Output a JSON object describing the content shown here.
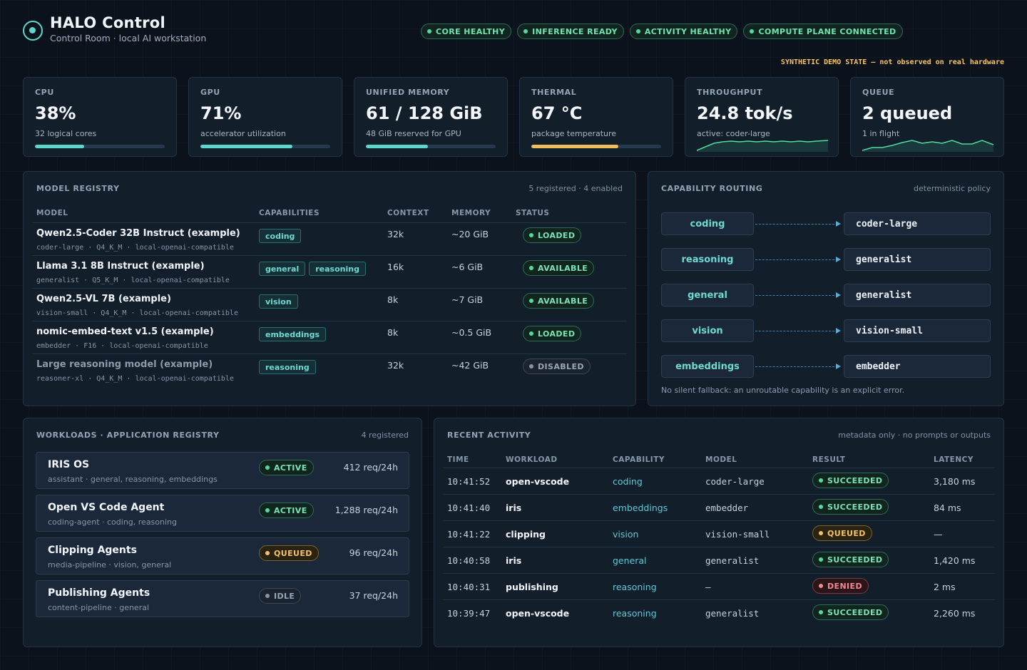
{
  "header": {
    "title": "HALO Control",
    "subtitle": "Control Room · local AI workstation",
    "badges": [
      "CORE HEALTHY",
      "INFERENCE READY",
      "ACTIVITY HEALTHY",
      "COMPUTE PLANE CONNECTED"
    ],
    "demo_note": "SYNTHETIC DEMO STATE — not observed on real hardware"
  },
  "metrics": [
    {
      "label": "CPU",
      "value": "38%",
      "sub": "32 logical cores",
      "progress": 0.38
    },
    {
      "label": "GPU",
      "value": "71%",
      "sub": "accelerator utilization",
      "progress": 0.71
    },
    {
      "label": "UNIFIED MEMORY",
      "value": "61 / 128 GiB",
      "sub": "48 GiB reserved for GPU",
      "progress": 0.48
    },
    {
      "label": "THERMAL",
      "value": "67 °C",
      "sub": "package temperature",
      "progress": 0.67
    },
    {
      "label": "THROUGHPUT",
      "value": "24.8 tok/s",
      "sub": "active: coder-large"
    },
    {
      "label": "QUEUE",
      "value": "2 queued",
      "sub": "1 in flight"
    }
  ],
  "registry": {
    "title": "MODEL REGISTRY",
    "meta": "5 registered · 4 enabled",
    "columns": [
      "MODEL",
      "CAPABILITIES",
      "CONTEXT",
      "MEMORY",
      "STATUS"
    ],
    "rows": [
      {
        "name": "Qwen2.5-Coder 32B Instruct (example)",
        "meta": "coder-large · Q4_K_M · local-openai-compatible",
        "caps": [
          "coding"
        ],
        "context": "32k",
        "memory": "~20 GiB",
        "status": "LOADED"
      },
      {
        "name": "Llama 3.1 8B Instruct (example)",
        "meta": "generalist · Q5_K_M · local-openai-compatible",
        "caps": [
          "general",
          "reasoning"
        ],
        "context": "16k",
        "memory": "~6 GiB",
        "status": "AVAILABLE"
      },
      {
        "name": "Qwen2.5-VL 7B (example)",
        "meta": "vision-small · Q4_K_M · local-openai-compatible",
        "caps": [
          "vision"
        ],
        "context": "8k",
        "memory": "~7 GiB",
        "status": "AVAILABLE"
      },
      {
        "name": "nomic-embed-text v1.5 (example)",
        "meta": "embedder · F16 · local-openai-compatible",
        "caps": [
          "embeddings"
        ],
        "context": "8k",
        "memory": "~0.5 GiB",
        "status": "LOADED"
      },
      {
        "name": "Large reasoning model (example)",
        "meta": "reasoner-xl · Q4_K_M · local-openai-compatible",
        "caps": [
          "reasoning"
        ],
        "context": "32k",
        "memory": "~42 GiB",
        "status": "DISABLED"
      }
    ]
  },
  "routing": {
    "title": "CAPABILITY ROUTING",
    "meta": "deterministic policy",
    "routes": [
      {
        "capability": "coding",
        "model": "coder-large"
      },
      {
        "capability": "reasoning",
        "model": "generalist"
      },
      {
        "capability": "general",
        "model": "generalist"
      },
      {
        "capability": "vision",
        "model": "vision-small"
      },
      {
        "capability": "embeddings",
        "model": "embedder"
      }
    ],
    "note": "No silent fallback: an unroutable capability is an explicit error."
  },
  "workloads": {
    "title": "WORKLOADS · APPLICATION REGISTRY",
    "meta": "4 registered",
    "items": [
      {
        "name": "IRIS OS",
        "meta": "assistant · general, reasoning, embeddings",
        "status": "ACTIVE",
        "requests": "412 req/24h"
      },
      {
        "name": "Open VS Code Agent",
        "meta": "coding-agent · coding, reasoning",
        "status": "ACTIVE",
        "requests": "1,288 req/24h"
      },
      {
        "name": "Clipping Agents",
        "meta": "media-pipeline · vision, general",
        "status": "QUEUED",
        "requests": "96 req/24h"
      },
      {
        "name": "Publishing Agents",
        "meta": "content-pipeline · general",
        "status": "IDLE",
        "requests": "37 req/24h"
      }
    ]
  },
  "activity": {
    "title": "RECENT ACTIVITY",
    "meta": "metadata only · no prompts or outputs",
    "columns": [
      "TIME",
      "WORKLOAD",
      "CAPABILITY",
      "MODEL",
      "RESULT",
      "LATENCY"
    ],
    "rows": [
      {
        "time": "10:41:52",
        "workload": "open-vscode",
        "capability": "coding",
        "model": "coder-large",
        "result": "SUCCEEDED",
        "latency": "3,180 ms"
      },
      {
        "time": "10:41:40",
        "workload": "iris",
        "capability": "embeddings",
        "model": "embedder",
        "result": "SUCCEEDED",
        "latency": "84 ms"
      },
      {
        "time": "10:41:22",
        "workload": "clipping",
        "capability": "vision",
        "model": "vision-small",
        "result": "QUEUED",
        "latency": "—"
      },
      {
        "time": "10:40:58",
        "workload": "iris",
        "capability": "general",
        "model": "generalist",
        "result": "SUCCEEDED",
        "latency": "1,420 ms"
      },
      {
        "time": "10:40:31",
        "workload": "publishing",
        "capability": "reasoning",
        "model": "–",
        "result": "DENIED",
        "latency": "2 ms"
      },
      {
        "time": "10:39:47",
        "workload": "open-vscode",
        "capability": "reasoning",
        "model": "generalist",
        "result": "SUCCEEDED",
        "latency": "2,260 ms"
      }
    ]
  },
  "colors": {
    "accent": "#5fd6cc",
    "ok": "#4fdc9e",
    "warn": "#f2c36a",
    "error": "#f08a90",
    "thermal": "#f0bd5e"
  },
  "icons": {
    "logo": "target-ring-icon",
    "status_dot": "status-dot-icon",
    "route_arrow": "arrow-right-icon"
  }
}
